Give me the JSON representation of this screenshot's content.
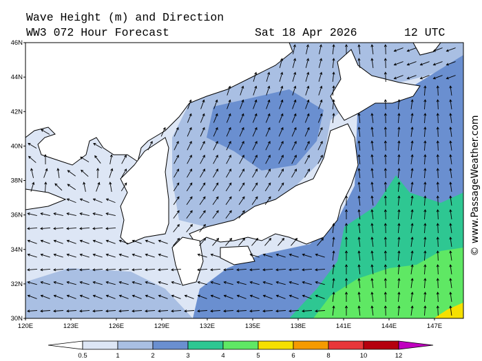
{
  "header": {
    "title": "Wave Height (m) and Direction",
    "model": "WW3 072 Hour Forecast",
    "date": "Sat 18 Apr 2026",
    "time": "12 UTC"
  },
  "map": {
    "lat_labels": [
      "30N",
      "32N",
      "34N",
      "36N",
      "38N",
      "40N",
      "42N",
      "44N",
      "46N"
    ],
    "lon_labels": [
      "120E",
      "123E",
      "126E",
      "129E",
      "132E",
      "135E",
      "138E",
      "141E",
      "144E",
      "147E"
    ]
  },
  "colorbar": {
    "labels": [
      0.5,
      1,
      2,
      3,
      4,
      5,
      6,
      8,
      10,
      12
    ],
    "colors": [
      "#ffffff",
      "#dde6f5",
      "#a9bfe3",
      "#6a8fd0",
      "#2ec792",
      "#5fe864",
      "#f5e000",
      "#f59a00",
      "#e8373a",
      "#b5000e",
      "#c000c0"
    ]
  },
  "copyright": "© www.PassageWeather.com"
}
